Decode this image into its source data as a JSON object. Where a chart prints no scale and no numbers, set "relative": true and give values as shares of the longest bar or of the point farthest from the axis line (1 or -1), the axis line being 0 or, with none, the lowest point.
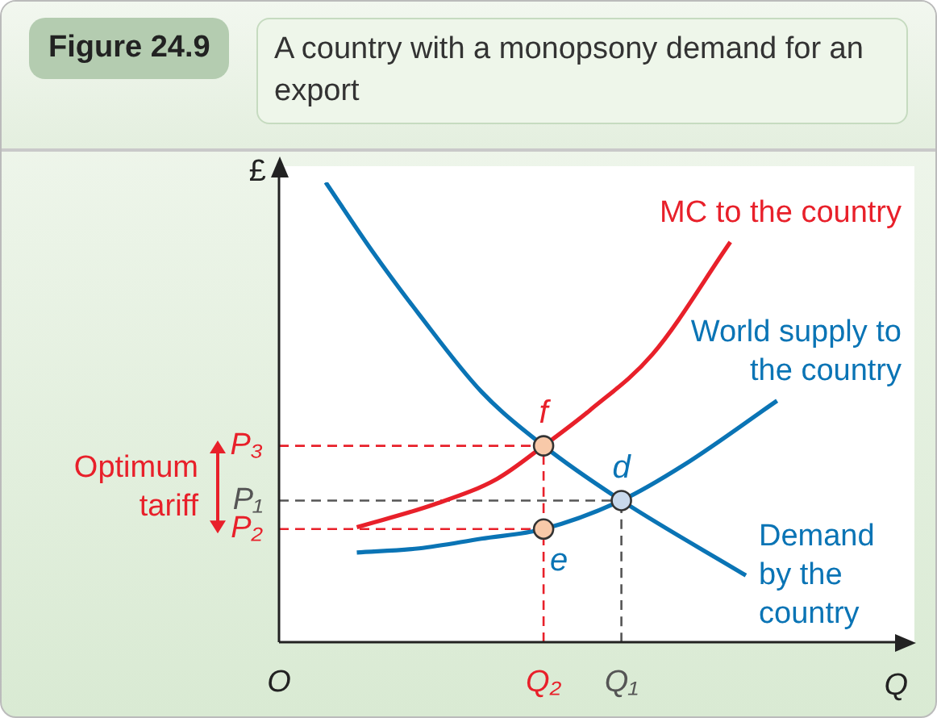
{
  "chart_data": {
    "type": "line",
    "title": "Figure 24.9",
    "subtitle": "A country with a monopsony demand for an export",
    "relative": true,
    "xlabel": "Q",
    "ylabel": "£",
    "legend": false,
    "marker": "none",
    "categories": [
      "O",
      null,
      null,
      null,
      null,
      null,
      null,
      null,
      null,
      null,
      null,
      null,
      null,
      null,
      null,
      null,
      null,
      "Q₂",
      null,
      null,
      null,
      null,
      "Q₁",
      null,
      null,
      null,
      null,
      null,
      null,
      null,
      null,
      null,
      null,
      null,
      null,
      null,
      null,
      null,
      null,
      null,
      null
    ],
    "series": [
      {
        "name": "MC to the country",
        "color": "#e8202a",
        "values": [
          null,
          null,
          null,
          null,
          null,
          0.25,
          null,
          null,
          null,
          null,
          0.3,
          null,
          null,
          null,
          0.355,
          null,
          null,
          0.427,
          null,
          null,
          0.505,
          null,
          null,
          null,
          0.626,
          null,
          null,
          null,
          null,
          0.87,
          null,
          null,
          null,
          null,
          null,
          null,
          null,
          null,
          null,
          null,
          null
        ]
      },
      {
        "name": "World supply to the country",
        "color": "#0a74b5",
        "values": [
          null,
          null,
          null,
          null,
          null,
          0.195,
          null,
          null,
          null,
          0.204,
          null,
          null,
          null,
          0.225,
          null,
          null,
          null,
          0.246,
          null,
          null,
          null,
          null,
          0.308,
          null,
          null,
          null,
          0.385,
          null,
          null,
          null,
          null,
          null,
          0.525,
          null,
          null,
          null,
          null,
          null,
          null,
          null,
          null
        ]
      },
      {
        "name": "Demand by the country",
        "color": "#0a74b5",
        "values": [
          null,
          null,
          null,
          1.0,
          null,
          null,
          0.85,
          null,
          null,
          0.713,
          null,
          null,
          null,
          0.545,
          null,
          null,
          null,
          0.427,
          null,
          null,
          null,
          null,
          0.308,
          null,
          null,
          null,
          null,
          null,
          null,
          null,
          0.145,
          null,
          null,
          null,
          null,
          null,
          null,
          null,
          null,
          null,
          null
        ]
      },
      {
        "name": "P₃",
        "color": "#e8202a",
        "line_style": "dashed",
        "x": [
          "O",
          "Q₂"
        ],
        "values": [
          0.427,
          0.427
        ]
      },
      {
        "color": "#e8202a",
        "line_style": "dashed",
        "x": [
          "Q₂",
          "Q₂"
        ],
        "values": [
          0,
          0.427
        ]
      },
      {
        "name": "P₂",
        "color": "#e8202a",
        "line_style": "dashed",
        "x": [
          "O",
          "Q₂"
        ],
        "values": [
          0.246,
          0.246
        ]
      },
      {
        "name": "P₁",
        "color": "#555555",
        "line_style": "dashed",
        "x": [
          "O",
          "Q₁"
        ],
        "values": [
          0.308,
          0.308
        ]
      },
      {
        "color": "#555555",
        "line_style": "dashed",
        "x": [
          "Q₁",
          "Q₁"
        ],
        "values": [
          0,
          0.308
        ]
      },
      {
        "type": "scatter",
        "marker": "circle",
        "colors": [
          "#f8c9a9",
          "#f8c9a9",
          "#c9d9ec"
        ],
        "x": [
          "Q₂",
          "Q₂",
          "Q₁"
        ],
        "values": [
          0.427,
          0.246,
          0.308
        ]
      }
    ],
    "annotations": [
      {
        "text": "f",
        "x": "Q₂",
        "y": 0.427
      },
      {
        "text": "e",
        "x": "Q₂",
        "y": 0.246
      },
      {
        "text": "d",
        "x": "Q₁",
        "y": 0.308
      },
      "Optimum tariff"
    ]
  }
}
